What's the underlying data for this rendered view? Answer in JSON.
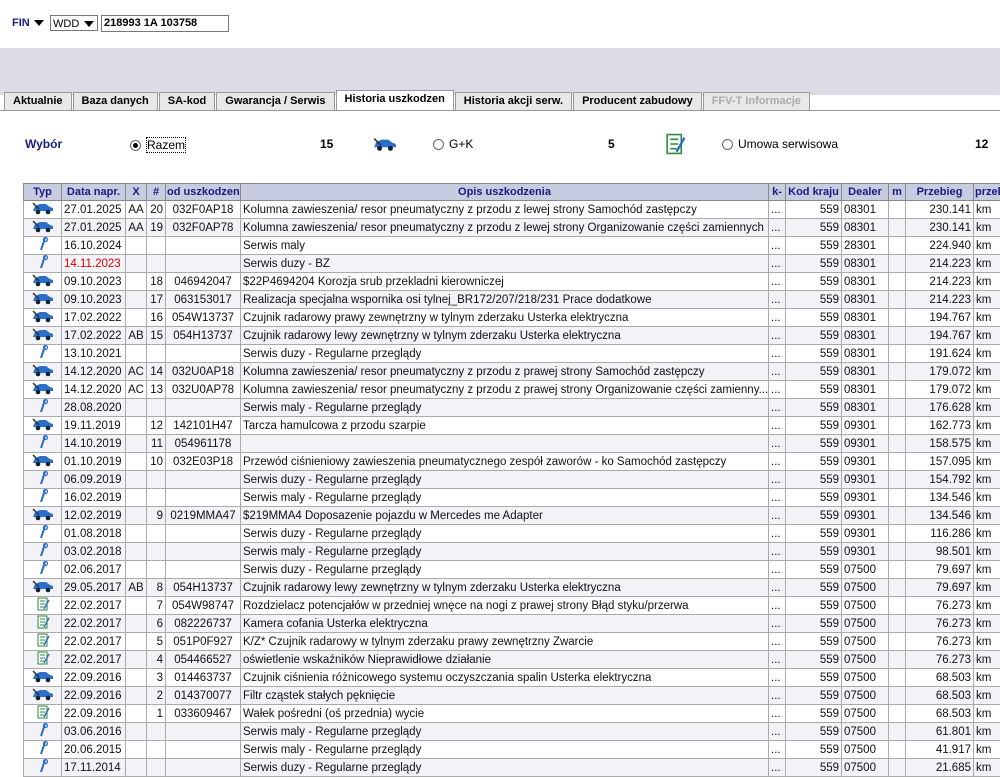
{
  "header": {
    "fin_label": "FIN",
    "prefix": "WDD",
    "vin": "218993 1A 103758"
  },
  "tabs": [
    {
      "label": "Aktualnie"
    },
    {
      "label": "Baza danych"
    },
    {
      "label": "SA-kod"
    },
    {
      "label": "Gwarancja / Serwis"
    },
    {
      "label": "Historia uszkodzen",
      "active": true
    },
    {
      "label": "Historia akcji serw."
    },
    {
      "label": "Producent zabudowy"
    },
    {
      "label": "FFV-T Informacje",
      "disabled": true
    }
  ],
  "filter": {
    "label": "Wybór",
    "options": [
      {
        "label": "Razem",
        "count": "15",
        "checked": true,
        "icon": "car"
      },
      {
        "label": "G+K",
        "count": "5",
        "icon": "doc"
      },
      {
        "label": "Umowa serwisowa",
        "count": "12"
      }
    ]
  },
  "table": {
    "columns": [
      "Typ",
      "Data napr.",
      "X",
      "#",
      "od uszkodzen",
      "Opis uszkodzenia",
      "k-",
      "Kod kraju",
      "Dealer",
      "m",
      "Przebieg",
      "przeb"
    ],
    "rows": [
      {
        "icon": "car",
        "date": "27.01.2025",
        "x": "AA",
        "num": "20",
        "code": "032F0AP18",
        "desc": "Kolumna zawieszenia/ resor pneumatyczny z przodu z lewej strony Samochód zastępczy",
        "more": "...",
        "country": "559",
        "dealer": "08301",
        "mileage": "230.141",
        "unit": "km"
      },
      {
        "icon": "car",
        "date": "27.01.2025",
        "x": "AA",
        "num": "19",
        "code": "032F0AP78",
        "desc": "Kolumna zawieszenia/ resor pneumatyczny z przodu z lewej strony Organizowanie części zamiennych",
        "more": "...",
        "country": "559",
        "dealer": "08301",
        "mileage": "230.141",
        "unit": "km"
      },
      {
        "icon": "wrench",
        "date": "16.10.2024",
        "desc": "Serwis maly",
        "more": "...",
        "country": "559",
        "dealer": "28301",
        "mileage": "224.940",
        "unit": "km"
      },
      {
        "icon": "wrench",
        "date": "14.11.2023",
        "date_color": "#e00000",
        "desc": "Serwis duzy - BZ",
        "more": "...",
        "country": "559",
        "dealer": "08301",
        "mileage": "214.223",
        "unit": "km"
      },
      {
        "icon": "car",
        "date": "09.10.2023",
        "num": "18",
        "code": "046942047",
        "desc": "$22P4694204 Korozja srub przekladni kierowniczej",
        "more": "...",
        "country": "559",
        "dealer": "08301",
        "mileage": "214.223",
        "unit": "km"
      },
      {
        "icon": "car",
        "date": "09.10.2023",
        "num": "17",
        "code": "063153017",
        "desc": "Realizacja specjalna wspornika osi tylnej_BR172/207/218/231 Prace dodatkowe",
        "more": "...",
        "country": "559",
        "dealer": "08301",
        "mileage": "214.223",
        "unit": "km"
      },
      {
        "icon": "car",
        "date": "17.02.2022",
        "num": "16",
        "code": "054W13737",
        "desc": "Czujnik radarowy prawy zewnętrzny w tylnym zderzaku Usterka elektryczna",
        "more": "...",
        "country": "559",
        "dealer": "08301",
        "mileage": "194.767",
        "unit": "km"
      },
      {
        "icon": "car",
        "date": "17.02.2022",
        "x": "AB",
        "num": "15",
        "code": "054H13737",
        "desc": "Czujnik radarowy lewy zewnętrzny w tylnym zderzaku Usterka elektryczna",
        "more": "...",
        "country": "559",
        "dealer": "08301",
        "mileage": "194.767",
        "unit": "km"
      },
      {
        "icon": "wrench",
        "date": "13.10.2021",
        "desc": "Serwis duzy - Regularne przeglądy",
        "more": "...",
        "country": "559",
        "dealer": "08301",
        "mileage": "191.624",
        "unit": "km"
      },
      {
        "icon": "car",
        "date": "14.12.2020",
        "x": "AC",
        "num": "14",
        "code": "032U0AP18",
        "desc": "Kolumna zawieszenia/ resor pneumatyczny z przodu z prawej strony Samochód zastępczy",
        "more": "...",
        "country": "559",
        "dealer": "08301",
        "mileage": "179.072",
        "unit": "km"
      },
      {
        "icon": "car",
        "date": "14.12.2020",
        "x": "AC",
        "num": "13",
        "code": "032U0AP78",
        "desc": "Kolumna zawieszenia/ resor pneumatyczny z przodu z prawej strony Organizowanie części zamienny...",
        "more": "...",
        "country": "559",
        "dealer": "08301",
        "mileage": "179.072",
        "unit": "km"
      },
      {
        "icon": "wrench",
        "date": "28.08.2020",
        "desc": "Serwis maly - Regularne przeglądy",
        "more": "...",
        "country": "559",
        "dealer": "08301",
        "mileage": "176.628",
        "unit": "km"
      },
      {
        "icon": "car",
        "date": "19.11.2019",
        "num": "12",
        "code": "142101H47",
        "desc": "Tarcza hamulcowa z przodu szarpie",
        "more": "...",
        "country": "559",
        "dealer": "09301",
        "mileage": "162.773",
        "unit": "km"
      },
      {
        "icon": "wrench",
        "date": "14.10.2019",
        "num": "11",
        "code": "054961178",
        "more": "...",
        "country": "559",
        "dealer": "09301",
        "mileage": "158.575",
        "unit": "km"
      },
      {
        "icon": "car",
        "date": "01.10.2019",
        "num": "10",
        "code": "032E03P18",
        "desc": "Przewód ciśnieniowy zawieszenia pneumatycznego zespół zaworów - ko Samochód zastępczy",
        "more": "...",
        "country": "559",
        "dealer": "09301",
        "mileage": "157.095",
        "unit": "km"
      },
      {
        "icon": "wrench",
        "date": "06.09.2019",
        "desc": "Serwis duzy - Regularne przeglądy",
        "more": "...",
        "country": "559",
        "dealer": "09301",
        "mileage": "154.792",
        "unit": "km"
      },
      {
        "icon": "wrench",
        "date": "16.02.2019",
        "desc": "Serwis maly - Regularne przeglądy",
        "more": "...",
        "country": "559",
        "dealer": "09301",
        "mileage": "134.546",
        "unit": "km"
      },
      {
        "icon": "car",
        "date": "12.02.2019",
        "num": "9",
        "code": "0219MMA47",
        "desc": "$219MMA4 Doposazenie pojazdu w Mercedes me Adapter",
        "more": "...",
        "country": "559",
        "dealer": "09301",
        "mileage": "134.546",
        "unit": "km"
      },
      {
        "icon": "wrench",
        "date": "01.08.2018",
        "desc": "Serwis duzy - Regularne przeglądy",
        "more": "...",
        "country": "559",
        "dealer": "09301",
        "mileage": "116.286",
        "unit": "km"
      },
      {
        "icon": "wrench",
        "date": "03.02.2018",
        "desc": "Serwis maly - Regularne przeglądy",
        "more": "...",
        "country": "559",
        "dealer": "09301",
        "mileage": "98.501",
        "unit": "km"
      },
      {
        "icon": "wrench",
        "date": "02.06.2017",
        "desc": "Serwis duzy - Regularne przeglądy",
        "more": "...",
        "country": "559",
        "dealer": "07500",
        "mileage": "79.697",
        "unit": "km"
      },
      {
        "icon": "car",
        "date": "29.05.2017",
        "x": "AB",
        "num": "8",
        "code": "054H13737",
        "desc": "Czujnik radarowy lewy zewnętrzny w tylnym zderzaku Usterka elektryczna",
        "more": "...",
        "country": "559",
        "dealer": "07500",
        "mileage": "79.697",
        "unit": "km"
      },
      {
        "icon": "doc",
        "date": "22.02.2017",
        "num": "7",
        "code": "054W98747",
        "desc": "Rozdzielacz potencjałów w przedniej wnęce na nogi z prawej strony Błąd styku/przerwa",
        "more": "...",
        "country": "559",
        "dealer": "07500",
        "mileage": "76.273",
        "unit": "km"
      },
      {
        "icon": "doc",
        "date": "22.02.2017",
        "num": "6",
        "code": "082226737",
        "desc": "Kamera cofania Usterka elektryczna",
        "more": "...",
        "country": "559",
        "dealer": "07500",
        "mileage": "76.273",
        "unit": "km"
      },
      {
        "icon": "doc",
        "date": "22.02.2017",
        "num": "5",
        "code": "051P0F927",
        "desc": "K/Z* Czujnik radarowy w tylnym zderzaku prawy zewnętrzny Zwarcie",
        "more": "...",
        "country": "559",
        "dealer": "07500",
        "mileage": "76.273",
        "unit": "km"
      },
      {
        "icon": "doc",
        "date": "22.02.2017",
        "num": "4",
        "code": "054466527",
        "desc": "oświetlenie wskaźników Nieprawidłowe działanie",
        "more": "...",
        "country": "559",
        "dealer": "07500",
        "mileage": "76.273",
        "unit": "km"
      },
      {
        "icon": "car",
        "date": "22.09.2016",
        "num": "3",
        "code": "014463737",
        "desc": "Czujnik ciśnienia różnicowego systemu oczyszczania spalin Usterka elektryczna",
        "more": "...",
        "country": "559",
        "dealer": "07500",
        "mileage": "68.503",
        "unit": "km"
      },
      {
        "icon": "car",
        "date": "22.09.2016",
        "num": "2",
        "code": "014370077",
        "desc": "Filtr cząstek stałych pęknięcie",
        "more": "...",
        "country": "559",
        "dealer": "07500",
        "mileage": "68.503",
        "unit": "km"
      },
      {
        "icon": "doc",
        "date": "22.09.2016",
        "num": "1",
        "code": "033609467",
        "desc": "Wałek pośredni (oś przednia) wycie",
        "more": "...",
        "country": "559",
        "dealer": "07500",
        "mileage": "68.503",
        "unit": "km"
      },
      {
        "icon": "wrench",
        "date": "03.06.2016",
        "desc": "Serwis maly - Regularne przeglądy",
        "more": "...",
        "country": "559",
        "dealer": "07500",
        "mileage": "61.801",
        "unit": "km"
      },
      {
        "icon": "wrench",
        "date": "20.06.2015",
        "desc": "Serwis maly - Regularne przeglądy",
        "more": "...",
        "country": "559",
        "dealer": "07500",
        "mileage": "41.917",
        "unit": "km"
      },
      {
        "icon": "wrench",
        "date": "17.11.2014",
        "desc": "Serwis duzy - Regularne przeglądy",
        "more": "...",
        "country": "559",
        "dealer": "07500",
        "mileage": "21.685",
        "unit": "km"
      }
    ]
  }
}
